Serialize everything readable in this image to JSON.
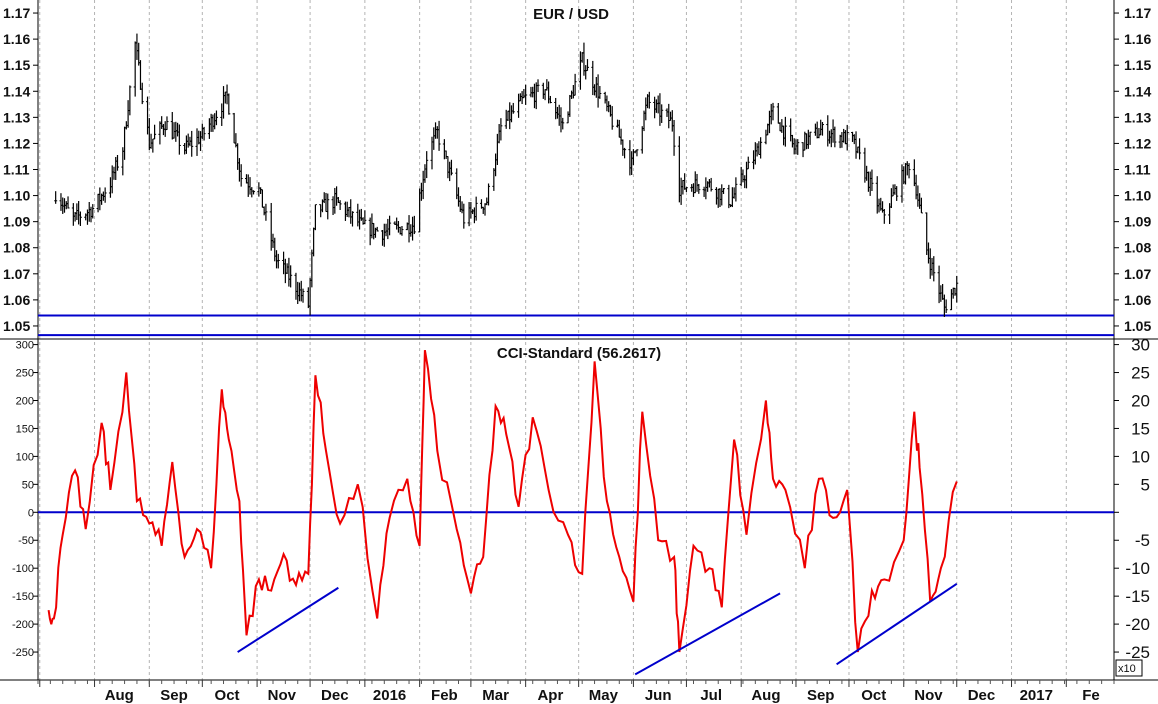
{
  "chart_data": [
    {
      "type": "candlestick",
      "title": "EUR / USD",
      "ylim": [
        1.045,
        1.175
      ],
      "yticks": [
        "1.05",
        "1.06",
        "1.07",
        "1.08",
        "1.09",
        "1.10",
        "1.11",
        "1.12",
        "1.13",
        "1.14",
        "1.15",
        "1.16",
        "1.17"
      ],
      "horizontal_lines": [
        1.054,
        1.0465
      ],
      "line_color": "#0000cc",
      "price_color": "#000000",
      "grid": "vertical dashed",
      "series": [
        {
          "x": [
            "2015-07-10",
            "2015-07-20",
            "2015-07-31",
            "2015-08-10",
            "2015-08-17",
            "2015-08-24",
            "2015-09-01",
            "2015-09-10",
            "2015-09-21",
            "2015-10-01",
            "2015-10-15",
            "2015-10-23",
            "2015-11-02",
            "2015-11-12",
            "2015-11-20",
            "2015-11-30",
            "2015-12-04",
            "2015-12-15",
            "2015-12-31",
            "2016-01-11",
            "2016-01-29",
            "2016-02-05",
            "2016-02-11",
            "2016-02-26",
            "2016-03-10",
            "2016-03-18",
            "2016-03-31",
            "2016-04-12",
            "2016-04-22",
            "2016-05-03",
            "2016-05-17",
            "2016-05-31",
            "2016-06-09",
            "2016-06-23",
            "2016-06-27",
            "2016-07-12",
            "2016-07-26",
            "2016-08-10",
            "2016-08-19",
            "2016-08-31",
            "2016-09-15",
            "2016-10-03",
            "2016-10-20",
            "2016-11-04",
            "2016-11-08",
            "2016-11-14",
            "2016-11-24",
            "2016-12-01"
          ],
          "values": [
            1.101,
            1.091,
            1.095,
            1.105,
            1.118,
            1.158,
            1.12,
            1.128,
            1.118,
            1.123,
            1.138,
            1.107,
            1.102,
            1.075,
            1.068,
            1.058,
            1.094,
            1.098,
            1.088,
            1.086,
            1.089,
            1.115,
            1.124,
            1.091,
            1.098,
            1.126,
            1.137,
            1.141,
            1.127,
            1.152,
            1.133,
            1.112,
            1.136,
            1.128,
            1.103,
            1.105,
            1.098,
            1.117,
            1.132,
            1.118,
            1.125,
            1.121,
            1.092,
            1.112,
            1.103,
            1.079,
            1.057,
            1.066
          ]
        }
      ]
    },
    {
      "type": "line",
      "title": "CCI-Standard (56.2617)",
      "ylim": [
        -300,
        310
      ],
      "yticks_left": [
        "-250",
        "-200",
        "-150",
        "-100",
        "-50",
        "0",
        "50",
        "100",
        "150",
        "200",
        "250",
        "300"
      ],
      "yticks_right": [
        "-25",
        "-20",
        "-15",
        "-10",
        "-5",
        "",
        "5",
        "10",
        "15",
        "20",
        "25",
        "30"
      ],
      "multiplier": "x10",
      "zero_line": 0,
      "line_color": "#ee0000",
      "series": [
        {
          "x": [
            "2015-07-06",
            "2015-07-09",
            "2015-07-14",
            "2015-07-21",
            "2015-07-27",
            "2015-08-05",
            "2015-08-10",
            "2015-08-19",
            "2015-08-25",
            "2015-09-01",
            "2015-09-08",
            "2015-09-14",
            "2015-09-21",
            "2015-09-28",
            "2015-10-06",
            "2015-10-12",
            "2015-10-16",
            "2015-10-22",
            "2015-10-26",
            "2015-11-02",
            "2015-11-09",
            "2015-11-16",
            "2015-11-23",
            "2015-11-30",
            "2015-12-04",
            "2015-12-10",
            "2015-12-18",
            "2015-12-28",
            "2016-01-08",
            "2016-01-15",
            "2016-01-25",
            "2016-02-01",
            "2016-02-04",
            "2016-02-11",
            "2016-02-22",
            "2016-03-01",
            "2016-03-08",
            "2016-03-15",
            "2016-03-21",
            "2016-03-28",
            "2016-04-05",
            "2016-04-14",
            "2016-04-25",
            "2016-05-03",
            "2016-05-10",
            "2016-05-17",
            "2016-05-24",
            "2016-06-01",
            "2016-06-06",
            "2016-06-15",
            "2016-06-24",
            "2016-06-27",
            "2016-07-05",
            "2016-07-14",
            "2016-07-21",
            "2016-07-28",
            "2016-08-04",
            "2016-08-15",
            "2016-08-19",
            "2016-08-26",
            "2016-09-06",
            "2016-09-14",
            "2016-09-22",
            "2016-09-30",
            "2016-10-06",
            "2016-10-14",
            "2016-10-21",
            "2016-11-01",
            "2016-11-07",
            "2016-11-10",
            "2016-11-16",
            "2016-11-22",
            "2016-12-01"
          ],
          "values": [
            -175,
            -190,
            -40,
            75,
            -30,
            160,
            40,
            250,
            20,
            -20,
            -60,
            90,
            -80,
            -30,
            -100,
            220,
            130,
            20,
            -220,
            -120,
            -140,
            -75,
            -130,
            -110,
            245,
            110,
            -20,
            50,
            -190,
            -10,
            60,
            -60,
            290,
            110,
            -30,
            -145,
            -80,
            190,
            140,
            10,
            170,
            40,
            -40,
            -110,
            270,
            20,
            -80,
            -160,
            180,
            -50,
            -80,
            -250,
            -60,
            -100,
            -170,
            130,
            -40,
            200,
            60,
            40,
            -100,
            60,
            -10,
            40,
            -250,
            -140,
            -120,
            -50,
            180,
            80,
            -160,
            -100,
            55
          ]
        }
      ],
      "divergence_lines": [
        {
          "from": [
            "2015-10-21",
            -250
          ],
          "to": [
            "2015-12-17",
            -135
          ]
        },
        {
          "from": [
            "2016-06-02",
            -290
          ],
          "to": [
            "2016-08-23",
            -145
          ]
        },
        {
          "from": [
            "2016-09-24",
            -272
          ],
          "to": [
            "2016-12-01",
            -128
          ]
        }
      ]
    }
  ],
  "x_axis": {
    "labels": [
      {
        "text": "Aug",
        "date": "2015-08-15"
      },
      {
        "text": "Sep",
        "date": "2015-09-15"
      },
      {
        "text": "Oct",
        "date": "2015-10-15"
      },
      {
        "text": "Nov",
        "date": "2015-11-15"
      },
      {
        "text": "Dec",
        "date": "2015-12-15"
      },
      {
        "text": "2016",
        "date": "2016-01-15"
      },
      {
        "text": "Feb",
        "date": "2016-02-15"
      },
      {
        "text": "Mar",
        "date": "2016-03-15"
      },
      {
        "text": "Apr",
        "date": "2016-04-15"
      },
      {
        "text": "May",
        "date": "2016-05-15"
      },
      {
        "text": "Jun",
        "date": "2016-06-15"
      },
      {
        "text": "Jul",
        "date": "2016-07-15"
      },
      {
        "text": "Aug",
        "date": "2016-08-15"
      },
      {
        "text": "Sep",
        "date": "2016-09-15"
      },
      {
        "text": "Oct",
        "date": "2016-10-15"
      },
      {
        "text": "Nov",
        "date": "2016-11-15"
      },
      {
        "text": "Dec",
        "date": "2016-12-15"
      },
      {
        "text": "2017",
        "date": "2017-01-15"
      },
      {
        "text": "Fe",
        "date": "2017-02-15"
      }
    ],
    "range": [
      "2015-06-30",
      "2017-02-28"
    ]
  }
}
